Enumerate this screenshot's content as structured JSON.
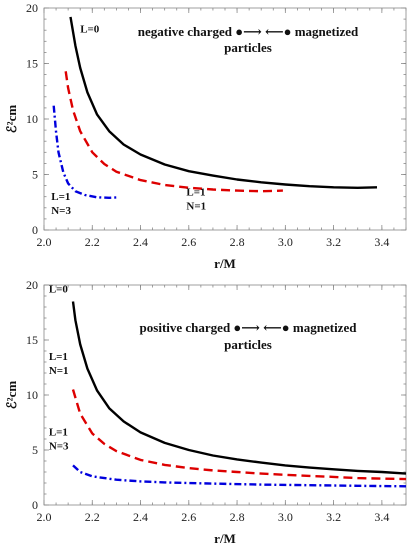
{
  "chart_data": [
    {
      "type": "line",
      "title_line1": "negative charged ●⟶ ⟵● magnetized",
      "title_line2": "particles",
      "xlabel": "r/M",
      "ylabel": "ℰ²cm",
      "xlim": [
        2.0,
        3.5
      ],
      "ylim": [
        0,
        20
      ],
      "xticks": [
        2.0,
        2.2,
        2.4,
        2.6,
        2.8,
        3.0,
        3.2,
        3.4
      ],
      "yticks": [
        0,
        5,
        10,
        15,
        20
      ],
      "series": [
        {
          "label": "L=0",
          "color": "#000000",
          "dash": "solid",
          "x": [
            2.11,
            2.13,
            2.15,
            2.18,
            2.22,
            2.27,
            2.33,
            2.4,
            2.5,
            2.6,
            2.7,
            2.8,
            2.9,
            3.0,
            3.1,
            3.2,
            3.3,
            3.38
          ],
          "y": [
            19.2,
            16.6,
            14.6,
            12.4,
            10.4,
            8.9,
            7.7,
            6.8,
            5.9,
            5.3,
            4.9,
            4.55,
            4.3,
            4.1,
            3.95,
            3.85,
            3.8,
            3.85
          ]
        },
        {
          "label": "L=1 N=1",
          "color": "#dd0000",
          "dash": "dashed",
          "x": [
            2.09,
            2.1,
            2.12,
            2.15,
            2.2,
            2.25,
            2.3,
            2.4,
            2.5,
            2.6,
            2.7,
            2.8,
            2.9,
            2.99
          ],
          "y": [
            14.3,
            12.8,
            10.8,
            8.9,
            7.0,
            5.95,
            5.25,
            4.5,
            4.05,
            3.8,
            3.65,
            3.55,
            3.5,
            3.55
          ]
        },
        {
          "label": "L=1 N=3",
          "color": "#0000dd",
          "dash": "dashdot",
          "x": [
            2.04,
            2.05,
            2.06,
            2.08,
            2.1,
            2.13,
            2.17,
            2.22,
            2.27,
            2.31
          ],
          "y": [
            11.2,
            8.8,
            7.0,
            5.2,
            4.2,
            3.5,
            3.15,
            2.95,
            2.9,
            2.95
          ]
        }
      ],
      "annotations": [
        {
          "lines": [
            "L=0"
          ],
          "x": 2.15,
          "y": 17.8
        },
        {
          "lines": [
            "L=1",
            "N=1"
          ],
          "x": 2.59,
          "y": 3.1
        },
        {
          "lines": [
            "L=1",
            "N=3"
          ],
          "x": 2.03,
          "y": 2.7
        }
      ]
    },
    {
      "type": "line",
      "title_line1": "positive charged ●⟶ ⟵● magnetized",
      "title_line2": "particles",
      "xlabel": "r/M",
      "ylabel": "ℰ²cm",
      "xlim": [
        2.0,
        3.5
      ],
      "ylim": [
        0,
        20
      ],
      "xticks": [
        2.0,
        2.2,
        2.4,
        2.6,
        2.8,
        3.0,
        3.2,
        3.4
      ],
      "yticks": [
        0,
        5,
        10,
        15,
        20
      ],
      "series": [
        {
          "label": "L=0",
          "color": "#000000",
          "dash": "solid",
          "x": [
            2.12,
            2.13,
            2.15,
            2.18,
            2.22,
            2.27,
            2.33,
            2.4,
            2.5,
            2.6,
            2.7,
            2.8,
            2.9,
            3.0,
            3.1,
            3.2,
            3.3,
            3.4,
            3.5
          ],
          "y": [
            18.5,
            16.8,
            14.6,
            12.4,
            10.4,
            8.8,
            7.6,
            6.6,
            5.65,
            5.0,
            4.5,
            4.15,
            3.85,
            3.6,
            3.4,
            3.25,
            3.1,
            3.0,
            2.85
          ]
        },
        {
          "label": "L=1 N=1",
          "color": "#dd0000",
          "dash": "dashed",
          "x": [
            2.12,
            2.15,
            2.2,
            2.25,
            2.3,
            2.4,
            2.5,
            2.6,
            2.7,
            2.8,
            2.9,
            3.0,
            3.1,
            3.2,
            3.3,
            3.4,
            3.5
          ],
          "y": [
            10.5,
            8.3,
            6.5,
            5.55,
            4.9,
            4.1,
            3.65,
            3.35,
            3.15,
            3.0,
            2.85,
            2.75,
            2.65,
            2.55,
            2.45,
            2.4,
            2.35
          ]
        },
        {
          "label": "L=1 N=3",
          "color": "#0000dd",
          "dash": "dashdot",
          "x": [
            2.12,
            2.15,
            2.2,
            2.3,
            2.4,
            2.5,
            2.7,
            2.9,
            3.1,
            3.3,
            3.5
          ],
          "y": [
            3.6,
            3.0,
            2.6,
            2.3,
            2.15,
            2.05,
            1.95,
            1.85,
            1.8,
            1.75,
            1.7
          ]
        }
      ],
      "annotations": [
        {
          "lines": [
            "L=0"
          ],
          "x": 2.02,
          "y": 19.3
        },
        {
          "lines": [
            "L=1",
            "N=1"
          ],
          "x": 2.02,
          "y": 13.2
        },
        {
          "lines": [
            "L=1",
            "N=3"
          ],
          "x": 2.02,
          "y": 6.3
        }
      ]
    }
  ]
}
